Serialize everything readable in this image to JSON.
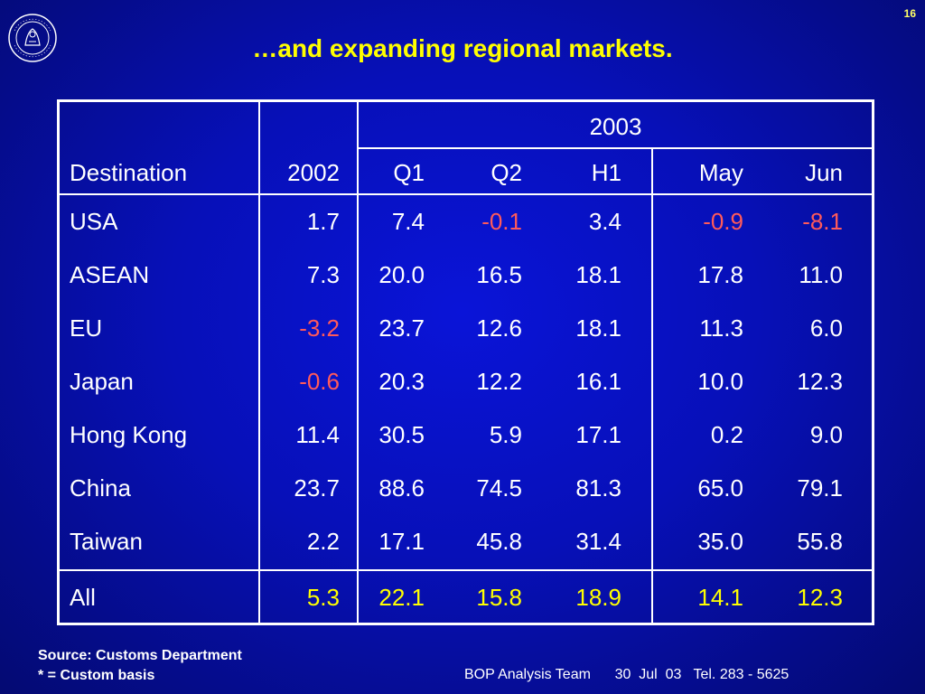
{
  "slide_number": "16",
  "title": "…and expanding regional markets.",
  "table": {
    "group_header": "2003",
    "headers": [
      "Destination",
      "2002",
      "Q1",
      "Q2",
      "H1",
      "May",
      "Jun"
    ],
    "rows": [
      {
        "name": "USA",
        "values": [
          "1.7",
          "7.4",
          "-0.1",
          "3.4",
          "-0.9",
          "-8.1"
        ]
      },
      {
        "name": "ASEAN",
        "values": [
          "7.3",
          "20.0",
          "16.5",
          "18.1",
          "17.8",
          "11.0"
        ]
      },
      {
        "name": "EU",
        "values": [
          "-3.2",
          "23.7",
          "12.6",
          "18.1",
          "11.3",
          "6.0"
        ]
      },
      {
        "name": "Japan",
        "values": [
          "-0.6",
          "20.3",
          "12.2",
          "16.1",
          "10.0",
          "12.3"
        ]
      },
      {
        "name": "Hong Kong",
        "values": [
          "11.4",
          "30.5",
          "5.9",
          "17.1",
          "0.2",
          "9.0"
        ]
      },
      {
        "name": "China",
        "values": [
          "23.7",
          "88.6",
          "74.5",
          "81.3",
          "65.0",
          "79.1"
        ]
      },
      {
        "name": "Taiwan",
        "values": [
          "2.2",
          "17.1",
          "45.8",
          "31.4",
          "35.0",
          "55.8"
        ]
      }
    ],
    "total": {
      "name": "All",
      "values": [
        "5.3",
        "22.1",
        "15.8",
        "18.9",
        "14.1",
        "12.3"
      ]
    }
  },
  "footer": {
    "source": "Source: Customs Department",
    "note": "* = Custom basis",
    "team": "BOP Analysis Team      30  Jul  03   Tel. 283 - 5625"
  },
  "colors": {
    "background": "#0710b8",
    "title": "#ffff00",
    "negative": "#ff5a5a",
    "total": "#ffff00",
    "text": "#ffffff"
  }
}
